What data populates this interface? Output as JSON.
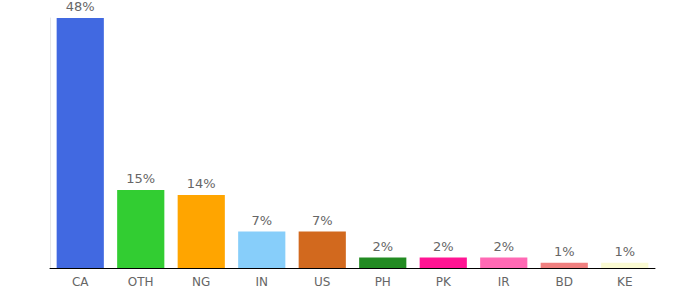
{
  "chart_data": {
    "type": "bar",
    "categories": [
      "CA",
      "OTH",
      "NG",
      "IN",
      "US",
      "PH",
      "PK",
      "IR",
      "BD",
      "KE"
    ],
    "values": [
      48,
      15,
      14,
      7,
      7,
      2,
      2,
      2,
      1,
      1
    ],
    "value_labels": [
      "48%",
      "15%",
      "14%",
      "7%",
      "7%",
      "2%",
      "2%",
      "2%",
      "1%",
      "1%"
    ],
    "colors": [
      "#4169e1",
      "#32cd32",
      "#ffa500",
      "#87cefa",
      "#d2691e",
      "#228b22",
      "#ff1493",
      "#ff69b4",
      "#f08080",
      "#fafad2"
    ],
    "ylim": [
      0,
      48
    ],
    "grid": false,
    "data_labels": true,
    "tick_labels": "x"
  }
}
